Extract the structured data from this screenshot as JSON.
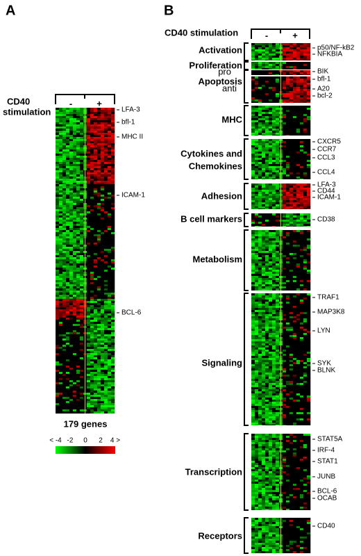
{
  "panel_a": {
    "label": "A",
    "stimulation_label": [
      "CD40",
      "stimulation"
    ],
    "minus": "-",
    "plus": "+",
    "genes": [
      "LFA-3",
      "bfl-1",
      "MHC II",
      "ICAM-1",
      "BCL-6"
    ],
    "gene_count": "179 genes",
    "scale_ticks": [
      "< -4",
      "-2",
      "0",
      "2",
      "4 >"
    ]
  },
  "panel_b": {
    "label": "B",
    "stimulation_label": "CD40 stimulation",
    "minus": "-",
    "plus": "+",
    "categories": [
      {
        "name": [
          "Activation"
        ]
      },
      {
        "name": [
          "Proliferation"
        ]
      },
      {
        "name": [
          "Apoptosis"
        ],
        "sub": [
          "pro",
          "anti"
        ]
      },
      {
        "name": [
          "MHC"
        ]
      },
      {
        "name": [
          "Cytokines and",
          "Chemokines"
        ]
      },
      {
        "name": [
          "Adhesion"
        ]
      },
      {
        "name": [
          "B cell markers"
        ]
      },
      {
        "name": [
          "Metabolism"
        ]
      },
      {
        "name": [
          "Signaling"
        ]
      },
      {
        "name": [
          "Transcription"
        ]
      },
      {
        "name": [
          "Receptors"
        ]
      }
    ],
    "genes": [
      "p50/NF-kB2",
      "NFKBIA",
      "BIK",
      "bfl-1",
      "A20",
      "bcl-2",
      "CXCR5",
      "CCR7",
      "CCL3",
      "CCL4",
      "LFA-3",
      "CD44",
      "ICAM-1",
      "CD38",
      "TRAF1",
      "MAP3K8",
      "LYN",
      "SYK",
      "BLNK",
      "STAT5A",
      "IRF-4",
      "STAT1",
      "JUNB",
      "BCL-6",
      "OCAB",
      "CD40"
    ]
  }
}
